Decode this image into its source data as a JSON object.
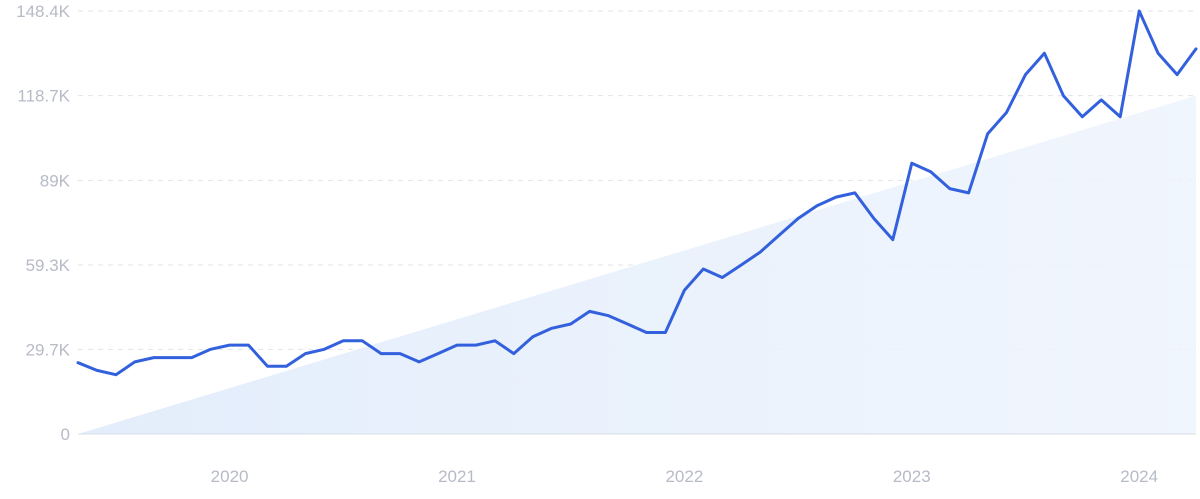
{
  "chart_data": {
    "type": "line",
    "title": "",
    "xlabel": "",
    "ylabel": "",
    "grid": true,
    "legend": "none",
    "ylim": [
      0,
      148400
    ],
    "xlim": [
      "2019-05",
      "2024-04"
    ],
    "y_ticks": [
      {
        "value": 0,
        "label": "0"
      },
      {
        "value": 29700,
        "label": "29.7K"
      },
      {
        "value": 59300,
        "label": "59.3K"
      },
      {
        "value": 89000,
        "label": "89K"
      },
      {
        "value": 118700,
        "label": "118.7K"
      },
      {
        "value": 148400,
        "label": "148.4K"
      }
    ],
    "x_ticks": [
      {
        "value": "2020-01",
        "label": "2020"
      },
      {
        "value": "2021-01",
        "label": "2021"
      },
      {
        "value": "2022-01",
        "label": "2022"
      },
      {
        "value": "2023-01",
        "label": "2023"
      },
      {
        "value": "2024-01",
        "label": "2024"
      }
    ],
    "series": [
      {
        "color": "#3360dd",
        "points": [
          [
            "2019-05",
            25000
          ],
          [
            "2019-06",
            22300
          ],
          [
            "2019-07",
            20800
          ],
          [
            "2019-08",
            25300
          ],
          [
            "2019-09",
            26800
          ],
          [
            "2019-10",
            26800
          ],
          [
            "2019-11",
            26800
          ],
          [
            "2019-12",
            29700
          ],
          [
            "2020-01",
            31200
          ],
          [
            "2020-02",
            31200
          ],
          [
            "2020-03",
            23800
          ],
          [
            "2020-04",
            23800
          ],
          [
            "2020-05",
            28200
          ],
          [
            "2020-06",
            29700
          ],
          [
            "2020-07",
            32700
          ],
          [
            "2020-08",
            32700
          ],
          [
            "2020-09",
            28200
          ],
          [
            "2020-10",
            28200
          ],
          [
            "2020-11",
            25300
          ],
          [
            "2020-12",
            28200
          ],
          [
            "2021-01",
            31200
          ],
          [
            "2021-02",
            31200
          ],
          [
            "2021-03",
            32700
          ],
          [
            "2021-04",
            28200
          ],
          [
            "2021-05",
            34100
          ],
          [
            "2021-06",
            37100
          ],
          [
            "2021-07",
            38600
          ],
          [
            "2021-08",
            43000
          ],
          [
            "2021-09",
            41500
          ],
          [
            "2021-10",
            38600
          ],
          [
            "2021-11",
            35600
          ],
          [
            "2021-12",
            35600
          ],
          [
            "2022-01",
            50400
          ],
          [
            "2022-02",
            57900
          ],
          [
            "2022-03",
            54900
          ],
          [
            "2022-04",
            59300
          ],
          [
            "2022-05",
            63800
          ],
          [
            "2022-06",
            69700
          ],
          [
            "2022-07",
            75600
          ],
          [
            "2022-08",
            80100
          ],
          [
            "2022-09",
            83100
          ],
          [
            "2022-10",
            84600
          ],
          [
            "2022-11",
            75600
          ],
          [
            "2022-12",
            68200
          ],
          [
            "2023-01",
            95000
          ],
          [
            "2023-02",
            92000
          ],
          [
            "2023-03",
            86100
          ],
          [
            "2023-04",
            84600
          ],
          [
            "2023-05",
            105300
          ],
          [
            "2023-06",
            112800
          ],
          [
            "2023-07",
            126100
          ],
          [
            "2023-08",
            133600
          ],
          [
            "2023-09",
            118700
          ],
          [
            "2023-10",
            111300
          ],
          [
            "2023-11",
            117200
          ],
          [
            "2023-12",
            111300
          ],
          [
            "2024-01",
            148400
          ],
          [
            "2024-02",
            133600
          ],
          [
            "2024-03",
            126100
          ],
          [
            "2024-04",
            135100
          ]
        ]
      }
    ],
    "trend": {
      "from": [
        "2019-05",
        0
      ],
      "to": [
        "2024-04",
        118700
      ],
      "color": "#dbe8fb"
    }
  }
}
